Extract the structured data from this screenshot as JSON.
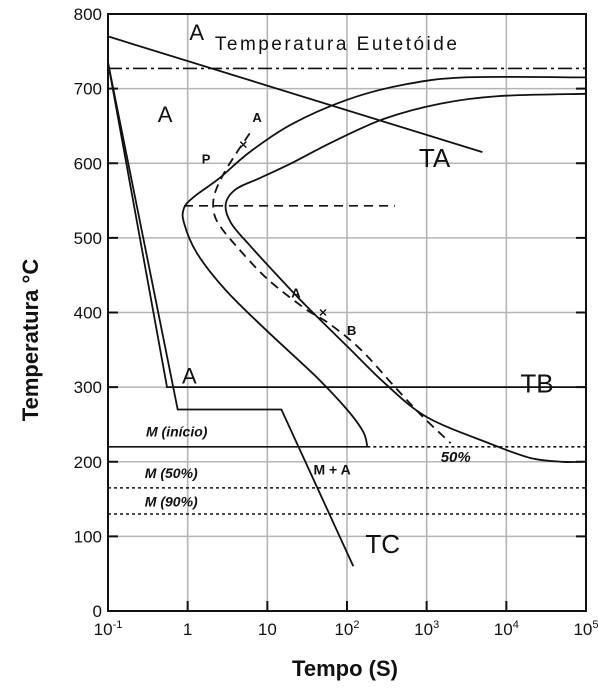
{
  "chart_data": {
    "type": "line",
    "title": "",
    "xlabel": "Tempo (S)",
    "ylabel": "Temperatura °C",
    "x_scale": "log",
    "xlim": [
      0.1,
      100000
    ],
    "ylim": [
      0,
      800
    ],
    "grid": true,
    "x_ticks": [
      {
        "value": 0.1,
        "base": "10",
        "exp": "-1"
      },
      {
        "value": 1,
        "base": "1",
        "exp": ""
      },
      {
        "value": 10,
        "base": "10",
        "exp": ""
      },
      {
        "value": 100,
        "base": "10",
        "exp": "2"
      },
      {
        "value": 1000,
        "base": "10",
        "exp": "3"
      },
      {
        "value": 10000,
        "base": "10",
        "exp": "4"
      },
      {
        "value": 100000,
        "base": "10",
        "exp": "5"
      }
    ],
    "y_ticks": [
      0,
      100,
      200,
      300,
      400,
      500,
      600,
      700,
      800
    ],
    "reference_lines": [
      {
        "name": "eutectoid",
        "y": 727,
        "style": "dashdot"
      },
      {
        "name": "ms-start",
        "y": 220,
        "style": "solid",
        "x_end": 180,
        "dotted_after": true
      },
      {
        "name": "m50",
        "y": 165,
        "style": "dotted"
      },
      {
        "name": "m90",
        "y": 130,
        "style": "dotted"
      },
      {
        "name": "pearlite-bainite",
        "y": 543,
        "style": "dashed",
        "x_start": 0.9,
        "x_end": 400
      }
    ],
    "curves": [
      {
        "name": "start-curve",
        "style": "solid",
        "points": [
          [
            100000,
            715
          ],
          [
            3000,
            715
          ],
          [
            500,
            705
          ],
          [
            100,
            685
          ],
          [
            20,
            652
          ],
          [
            6,
            615
          ],
          [
            2.5,
            580
          ],
          [
            1.2,
            555
          ],
          [
            0.9,
            540
          ],
          [
            0.9,
            520
          ],
          [
            1.3,
            480
          ],
          [
            3,
            430
          ],
          [
            10,
            375
          ],
          [
            40,
            315
          ],
          [
            100,
            270
          ],
          [
            160,
            240
          ],
          [
            180,
            220
          ]
        ]
      },
      {
        "name": "finish-curve",
        "style": "solid",
        "points": [
          [
            100000,
            693
          ],
          [
            8000,
            690
          ],
          [
            1500,
            680
          ],
          [
            300,
            660
          ],
          [
            70,
            630
          ],
          [
            20,
            600
          ],
          [
            8,
            580
          ],
          [
            4,
            565
          ],
          [
            3,
            545
          ],
          [
            3.5,
            520
          ],
          [
            6,
            490
          ],
          [
            12,
            455
          ],
          [
            30,
            410
          ],
          [
            100,
            355
          ],
          [
            300,
            305
          ],
          [
            1000,
            260
          ],
          [
            6000,
            225
          ],
          [
            20000,
            205
          ],
          [
            50000,
            200
          ],
          [
            90000,
            200
          ]
        ]
      },
      {
        "name": "fifty-percent-curve",
        "style": "dashed",
        "points": [
          [
            6,
            640
          ],
          [
            4,
            612
          ],
          [
            2.8,
            585
          ],
          [
            2.2,
            560
          ],
          [
            2.1,
            540
          ],
          [
            2.4,
            520
          ],
          [
            4,
            490
          ],
          [
            10,
            445
          ],
          [
            30,
            405
          ],
          [
            60,
            385
          ],
          [
            150,
            350
          ],
          [
            400,
            300
          ],
          [
            900,
            260
          ],
          [
            2000,
            225
          ]
        ]
      }
    ],
    "cooling_lines": [
      {
        "name": "TA",
        "points": [
          [
            0.1,
            770
          ],
          [
            5000,
            615
          ]
        ]
      },
      {
        "name": "TB",
        "points": [
          [
            0.1,
            735
          ],
          [
            0.55,
            300
          ],
          [
            100000,
            300
          ]
        ]
      },
      {
        "name": "TC",
        "points": [
          [
            0.1,
            735
          ],
          [
            0.75,
            270
          ],
          [
            15,
            270
          ],
          [
            120,
            60
          ]
        ]
      }
    ],
    "annotations": [
      {
        "id": "label-a-top",
        "text": "A",
        "x": 1.05,
        "y": 765,
        "size": 22,
        "bold": false,
        "italic": false
      },
      {
        "id": "eutectoid-label",
        "text": "Temperatura Eutetóide",
        "x": 2.2,
        "y": 752,
        "size": 19,
        "bold": false,
        "italic": false
      },
      {
        "id": "label-a-left",
        "text": "A",
        "x": 0.42,
        "y": 655,
        "size": 22,
        "bold": false,
        "italic": false
      },
      {
        "id": "label-a-curve-top",
        "text": "A",
        "x": 6.5,
        "y": 655,
        "size": 13,
        "bold": true,
        "italic": false
      },
      {
        "id": "label-p",
        "text": "P",
        "x": 1.5,
        "y": 600,
        "size": 13,
        "bold": true,
        "italic": false
      },
      {
        "id": "label-ta",
        "text": "TA",
        "x": 800,
        "y": 595,
        "size": 26,
        "bold": false,
        "italic": false
      },
      {
        "id": "label-a-mid",
        "text": "A",
        "x": 20,
        "y": 420,
        "size": 13,
        "bold": true,
        "italic": false
      },
      {
        "id": "label-b",
        "text": "B",
        "x": 100,
        "y": 370,
        "size": 13,
        "bold": true,
        "italic": false
      },
      {
        "id": "label-a-tb",
        "text": "A",
        "x": 0.85,
        "y": 305,
        "size": 22,
        "bold": false,
        "italic": false
      },
      {
        "id": "label-tb",
        "text": "TB",
        "x": 15000,
        "y": 293,
        "size": 26,
        "bold": false,
        "italic": false
      },
      {
        "id": "label-m-inicio",
        "text": "M (início)",
        "x": 0.3,
        "y": 234,
        "size": 14,
        "bold": true,
        "italic": true
      },
      {
        "id": "label-50-percent",
        "text": "50%",
        "x": 1500,
        "y": 200,
        "size": 15,
        "bold": true,
        "italic": true
      },
      {
        "id": "label-m-plus-a",
        "text": "M + A",
        "x": 38,
        "y": 183,
        "size": 14,
        "bold": true,
        "italic": false
      },
      {
        "id": "label-m50",
        "text": "M (50%)",
        "x": 0.29,
        "y": 178,
        "size": 14,
        "bold": true,
        "italic": true
      },
      {
        "id": "label-m90",
        "text": "M (90%)",
        "x": 0.29,
        "y": 140,
        "size": 14,
        "bold": true,
        "italic": true
      },
      {
        "id": "label-tc",
        "text": "TC",
        "x": 170,
        "y": 78,
        "size": 26,
        "bold": false,
        "italic": false
      }
    ]
  }
}
